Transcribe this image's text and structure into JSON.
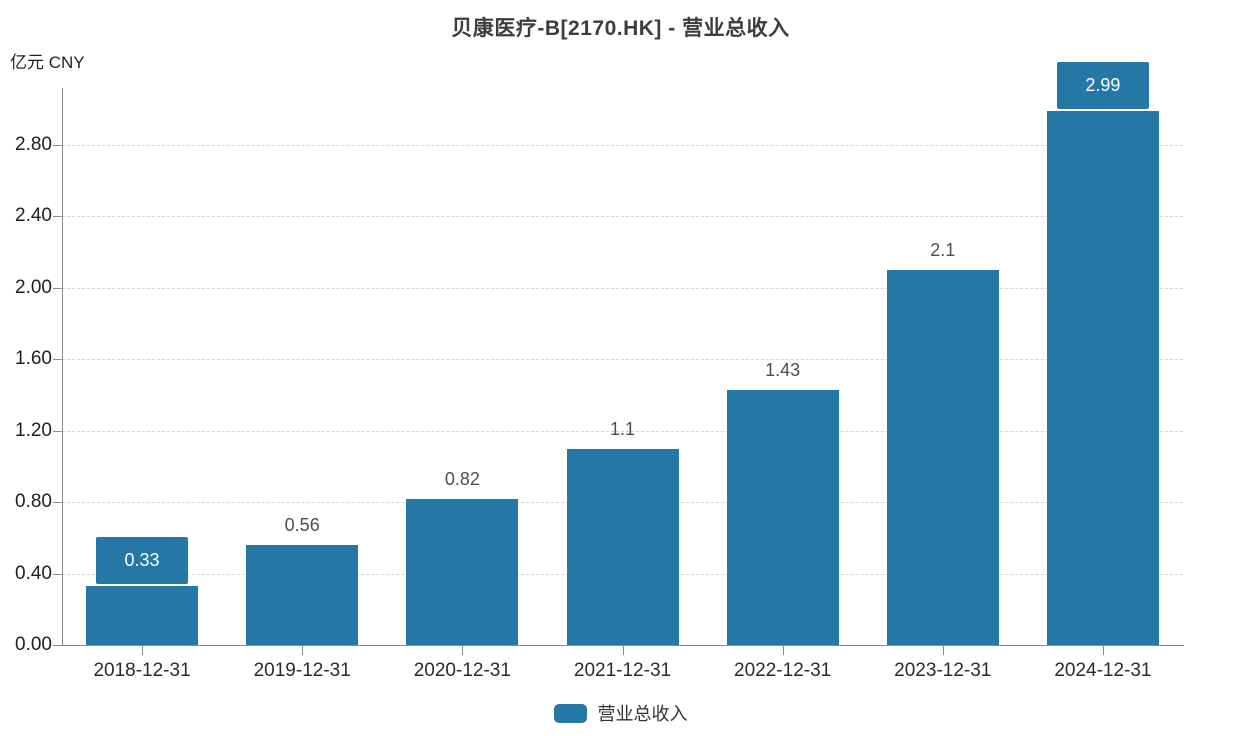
{
  "chart_data": {
    "type": "bar",
    "title": "贝康医疗-B[2170.HK] - 营业总收入",
    "unit_label": "亿元  CNY",
    "categories": [
      "2018-12-31",
      "2019-12-31",
      "2020-12-31",
      "2021-12-31",
      "2022-12-31",
      "2023-12-31",
      "2024-12-31"
    ],
    "series": [
      {
        "name": "营业总收入",
        "values": [
          0.33,
          0.56,
          0.82,
          1.1,
          1.43,
          2.1,
          2.99
        ]
      }
    ],
    "value_labels": [
      "0.33",
      "0.56",
      "0.82",
      "1.1",
      "1.43",
      "2.1",
      "2.99"
    ],
    "boxed_label_indices": [
      0,
      6
    ],
    "ylim": [
      0,
      3.12
    ],
    "yticks": [
      0.0,
      0.4,
      0.8,
      1.2,
      1.6,
      2.0,
      2.4,
      2.8
    ],
    "ytick_labels": [
      "0.00",
      "0.40",
      "0.80",
      "1.20",
      "1.60",
      "2.00",
      "2.40",
      "2.80"
    ],
    "xlabel": "",
    "ylabel": "亿元  CNY",
    "grid": "horizontal-dashed",
    "legend": {
      "label": "营业总收入",
      "position": "bottom"
    },
    "colors": {
      "bar": "#2577a6",
      "axis": "#8a8a8a",
      "gridline": "#d6d6d6",
      "title_text": "#3d3d3d",
      "value_text": "#4d4d4d",
      "badge_text": "#ffffff"
    }
  }
}
